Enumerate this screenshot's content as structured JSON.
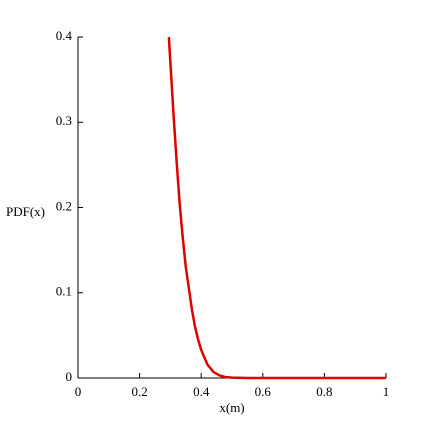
{
  "chart_data": {
    "type": "line",
    "xlabel": "x(m)",
    "ylabel": "PDF(x)",
    "x": [
      0.295,
      0.3,
      0.31,
      0.32,
      0.33,
      0.34,
      0.35,
      0.36,
      0.37,
      0.38,
      0.39,
      0.4,
      0.42,
      0.44,
      0.46,
      0.48,
      0.5,
      0.55,
      0.6,
      0.7,
      0.8,
      0.9,
      1
    ],
    "series": [
      {
        "color": "#e00000",
        "values": [
          0.4,
          0.37,
          0.31,
          0.255,
          0.205,
          0.165,
          0.13,
          0.105,
          0.08,
          0.06,
          0.045,
          0.033,
          0.016,
          0.007,
          0.003,
          0.001,
          0.0004,
          0,
          0,
          0,
          0,
          0,
          0
        ]
      }
    ],
    "xlim": [
      0,
      1
    ],
    "ylim": [
      0,
      0.4
    ],
    "xticks": [
      0,
      0.2,
      0.4,
      0.6,
      0.8,
      1
    ],
    "yticks": [
      0,
      0.1,
      0.2,
      0.3,
      0.4
    ],
    "grid": false
  }
}
